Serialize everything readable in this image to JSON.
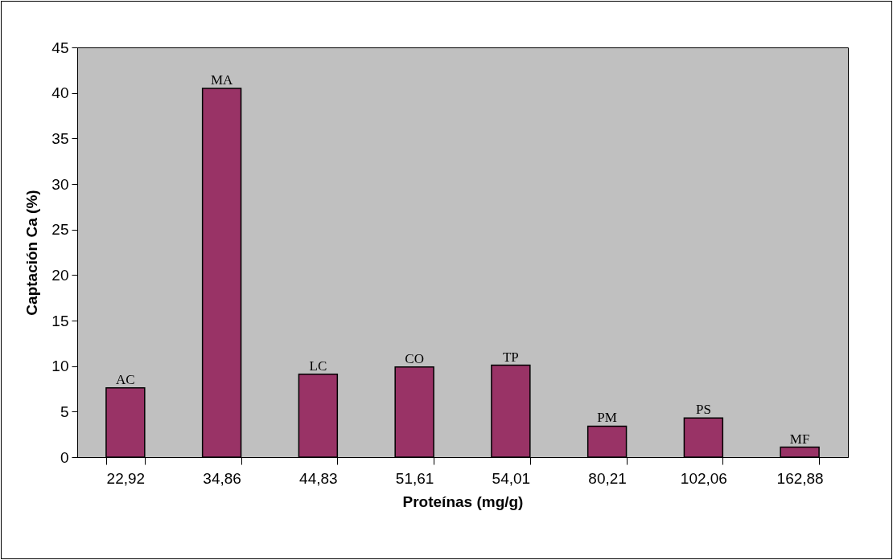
{
  "chart_data": {
    "type": "bar",
    "xlabel": "Proteínas (mg/g)",
    "ylabel": "Captación Ca (%)",
    "categories": [
      "22,92",
      "34,86",
      "44,83",
      "51,61",
      "54,01",
      "80,21",
      "102,06",
      "162,88"
    ],
    "values": [
      7.6,
      40.5,
      9.1,
      9.9,
      10.1,
      3.4,
      4.3,
      1.1
    ],
    "color": "#993366",
    "ylim": [
      0,
      45
    ],
    "yticks": [
      0,
      5,
      10,
      15,
      20,
      25,
      30,
      35,
      40,
      45
    ],
    "grid": false,
    "annotations": [
      {
        "text": "AC",
        "x": "22,92",
        "y": 7.6
      },
      {
        "text": "MA",
        "x": "34,86",
        "y": 40.5
      },
      {
        "text": "LC",
        "x": "44,83",
        "y": 9.1
      },
      {
        "text": "CO",
        "x": "51,61",
        "y": 9.9
      },
      {
        "text": "TP",
        "x": "54,01",
        "y": 10.1
      },
      {
        "text": "PM",
        "x": "80,21",
        "y": 3.4
      },
      {
        "text": "PS",
        "x": "102,06",
        "y": 4.3
      },
      {
        "text": "MF",
        "x": "162,88",
        "y": 1.1
      }
    ]
  }
}
